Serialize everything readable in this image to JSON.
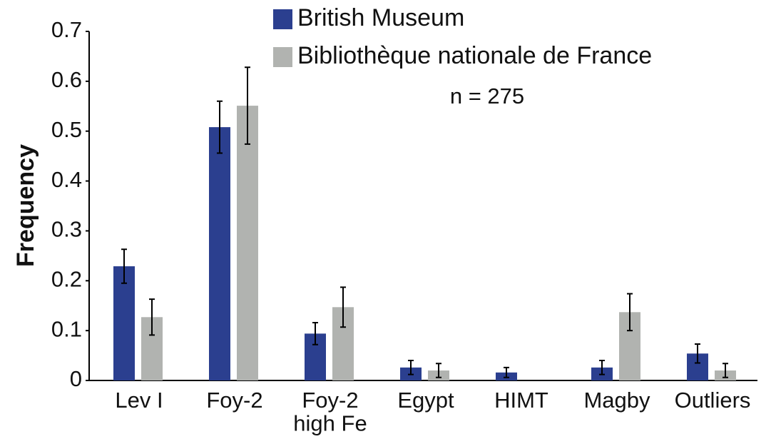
{
  "chart_data": {
    "type": "bar",
    "y_label": "Frequency",
    "annotation": "n = 275",
    "categories": [
      "Lev I",
      "Foy-2",
      "Foy-2\nhigh Fe",
      "Egypt",
      "HIMT",
      "Magby",
      "Outliers"
    ],
    "series": [
      {
        "name": "British Museum",
        "color": "#2b3f8f",
        "values": [
          0.229,
          0.508,
          0.094,
          0.026,
          0.016,
          0.026,
          0.054
        ],
        "errors": [
          0.034,
          0.052,
          0.022,
          0.014,
          0.01,
          0.014,
          0.019
        ]
      },
      {
        "name": "Bibliothèque nationale de France",
        "color": "#b1b3b0",
        "values": [
          0.127,
          0.551,
          0.147,
          0.02,
          0,
          0.137,
          0.02
        ],
        "errors": [
          0.036,
          0.077,
          0.04,
          0.014,
          null,
          0.037,
          0.014
        ]
      }
    ],
    "ylim": [
      0,
      0.7
    ],
    "yticks": [
      0,
      0.1,
      0.2,
      0.3,
      0.4,
      0.5,
      0.6,
      0.7
    ],
    "grid": false
  }
}
